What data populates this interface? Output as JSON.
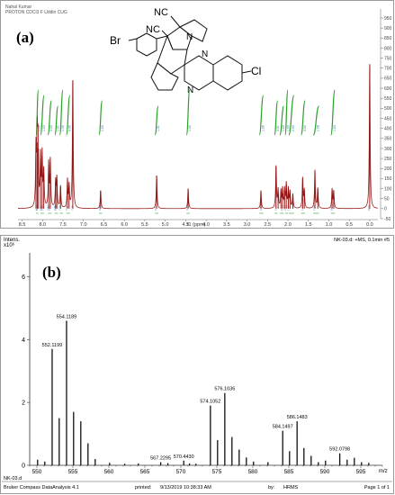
{
  "panel_a": {
    "label": "(a)",
    "header_lines": [
      "Nahal Kumar",
      "PROTON CDCl3 F Uddin CUG"
    ],
    "x_axis_title": "f1 (ppm)",
    "x_ticks": [
      "8.5",
      "8.0",
      "7.5",
      "7.0",
      "6.5",
      "6.0",
      "5.5",
      "5.0",
      "4.5",
      "4.0",
      "3.5",
      "3.0",
      "2.5",
      "2.0",
      "1.5",
      "1.0",
      "0.5",
      "0.0"
    ],
    "y_ticks": [
      "-50",
      "0",
      "50",
      "100",
      "150",
      "200",
      "250",
      "300",
      "350",
      "400",
      "450",
      "500",
      "550",
      "600",
      "650",
      "700",
      "750",
      "800",
      "850",
      "900",
      "950"
    ],
    "structure_labels": {
      "br": "Br",
      "cl": "Cl",
      "nc1": "NC",
      "nc2": "NC",
      "n1": "N",
      "n2": "N",
      "n3": "N"
    },
    "integrals": [
      "1.00",
      "1.03",
      "3.02",
      "1.01",
      "1.00",
      "0.99",
      "1.00",
      "1.01",
      "1.00",
      "1.06",
      "3.01",
      "1.00",
      "1.99",
      "2.00",
      "3.02",
      "1.98",
      "1.04",
      "1.09",
      "0.99",
      "1.01",
      "1.00"
    ],
    "peak_ppm": [
      "8.13",
      "8.12",
      "8.02",
      "7.97",
      "7.84",
      "7.81",
      "7.68",
      "7.65",
      "7.55",
      "7.39",
      "7.25",
      "6.58",
      "5.21",
      "4.44",
      "2.64",
      "2.27",
      "2.13",
      "2.05",
      "1.97",
      "1.63",
      "1.34",
      "0.91",
      "0.00"
    ]
  },
  "panel_b": {
    "label": "(b)",
    "y_title_1": "Intens.",
    "y_title_2": "x10⁶",
    "top_right": "NK-03.d: +MS, 0.1min #5",
    "sample": "NK-03.d",
    "footer_software": "Bruker Compass DataAnalysis 4.1",
    "footer_printed_label": "printed:",
    "footer_printed": "9/13/2019 10:38:33 AM",
    "footer_by_label": "by:",
    "footer_by": "HRMS",
    "footer_page": "Page 1 of 1"
  },
  "chart_data": [
    {
      "type": "line",
      "title": "",
      "xlabel": "f1 (ppm)",
      "ylabel": "",
      "xlim": [
        8.6,
        -0.2
      ],
      "ylim": [
        -50,
        950
      ],
      "peaks": [
        {
          "x": 8.16,
          "y": 290
        },
        {
          "x": 8.13,
          "y": 330
        },
        {
          "x": 8.11,
          "y": 300
        },
        {
          "x": 8.05,
          "y": 250
        },
        {
          "x": 8.01,
          "y": 260
        },
        {
          "x": 7.97,
          "y": 175
        },
        {
          "x": 7.85,
          "y": 220
        },
        {
          "x": 7.81,
          "y": 235
        },
        {
          "x": 7.68,
          "y": 130
        },
        {
          "x": 7.65,
          "y": 145
        },
        {
          "x": 7.56,
          "y": 110
        },
        {
          "x": 7.39,
          "y": 140
        },
        {
          "x": 7.35,
          "y": 110
        },
        {
          "x": 7.26,
          "y": 640
        },
        {
          "x": 6.58,
          "y": 90
        },
        {
          "x": 5.21,
          "y": 165
        },
        {
          "x": 4.44,
          "y": 100
        },
        {
          "x": 2.66,
          "y": 90
        },
        {
          "x": 2.29,
          "y": 210
        },
        {
          "x": 2.24,
          "y": 90
        },
        {
          "x": 2.17,
          "y": 85
        },
        {
          "x": 2.13,
          "y": 95
        },
        {
          "x": 2.08,
          "y": 90
        },
        {
          "x": 2.04,
          "y": 120
        },
        {
          "x": 1.99,
          "y": 95
        },
        {
          "x": 1.95,
          "y": 80
        },
        {
          "x": 1.88,
          "y": 70
        },
        {
          "x": 1.64,
          "y": 150
        },
        {
          "x": 1.6,
          "y": 90
        },
        {
          "x": 1.34,
          "y": 190
        },
        {
          "x": 1.27,
          "y": 100
        },
        {
          "x": 0.92,
          "y": 95
        },
        {
          "x": 0.88,
          "y": 85
        },
        {
          "x": 0.0,
          "y": 720
        }
      ]
    },
    {
      "type": "bar",
      "title": "",
      "xlabel": "m/z",
      "ylabel": "Intens. x10⁶",
      "xlim": [
        549,
        598
      ],
      "ylim": [
        0,
        6.7
      ],
      "x_ticks": [
        550,
        555,
        560,
        565,
        570,
        575,
        580,
        585,
        590,
        595
      ],
      "y_ticks": [
        0,
        2,
        4,
        6
      ],
      "peaks": [
        {
          "x": 550.1,
          "y": 0.18
        },
        {
          "x": 551.1,
          "y": 0.12
        },
        {
          "x": 552.1199,
          "y": 3.7
        },
        {
          "x": 553.1,
          "y": 1.5
        },
        {
          "x": 554.1189,
          "y": 4.6
        },
        {
          "x": 555.1,
          "y": 1.7
        },
        {
          "x": 556.1,
          "y": 1.4
        },
        {
          "x": 557.1,
          "y": 0.7
        },
        {
          "x": 558.1,
          "y": 0.2
        },
        {
          "x": 560.1,
          "y": 0.08
        },
        {
          "x": 562.2,
          "y": 0.05
        },
        {
          "x": 564.1,
          "y": 0.06
        },
        {
          "x": 567.2,
          "y": 0.1
        },
        {
          "x": 568.2,
          "y": 0.07
        },
        {
          "x": 570.4,
          "y": 0.15
        },
        {
          "x": 571.2,
          "y": 0.06
        },
        {
          "x": 572.1,
          "y": 0.05
        },
        {
          "x": 574.1052,
          "y": 1.9
        },
        {
          "x": 575.1,
          "y": 0.8
        },
        {
          "x": 576.1036,
          "y": 2.3
        },
        {
          "x": 577.1,
          "y": 0.9
        },
        {
          "x": 578.1,
          "y": 0.5
        },
        {
          "x": 579.1,
          "y": 0.25
        },
        {
          "x": 580.1,
          "y": 0.12
        },
        {
          "x": 582.1,
          "y": 0.1
        },
        {
          "x": 584.1497,
          "y": 1.1
        },
        {
          "x": 585.1,
          "y": 0.45
        },
        {
          "x": 586.1483,
          "y": 1.4
        },
        {
          "x": 587.1,
          "y": 0.55
        },
        {
          "x": 588.1,
          "y": 0.3
        },
        {
          "x": 589.1,
          "y": 0.1
        },
        {
          "x": 590.1,
          "y": 0.15
        },
        {
          "x": 592.0798,
          "y": 0.38
        },
        {
          "x": 593.1,
          "y": 0.18
        },
        {
          "x": 594.1,
          "y": 0.24
        },
        {
          "x": 595.1,
          "y": 0.1
        },
        {
          "x": 596.1,
          "y": 0.08
        }
      ],
      "labels": [
        {
          "x": 552.1199,
          "y": 3.7,
          "text": "552.1199"
        },
        {
          "x": 554.1189,
          "y": 4.6,
          "text": "554.1189"
        },
        {
          "x": 567.2,
          "y": 0.1,
          "text": "567.2295"
        },
        {
          "x": 570.4,
          "y": 0.15,
          "text": "570.4430"
        },
        {
          "x": 574.1052,
          "y": 1.9,
          "text": "574.1052"
        },
        {
          "x": 576.1036,
          "y": 2.3,
          "text": "576.1036"
        },
        {
          "x": 584.1497,
          "y": 1.1,
          "text": "584.1497"
        },
        {
          "x": 586.1483,
          "y": 1.4,
          "text": "586.1483"
        },
        {
          "x": 592.0798,
          "y": 0.38,
          "text": "592.0798"
        }
      ]
    }
  ]
}
